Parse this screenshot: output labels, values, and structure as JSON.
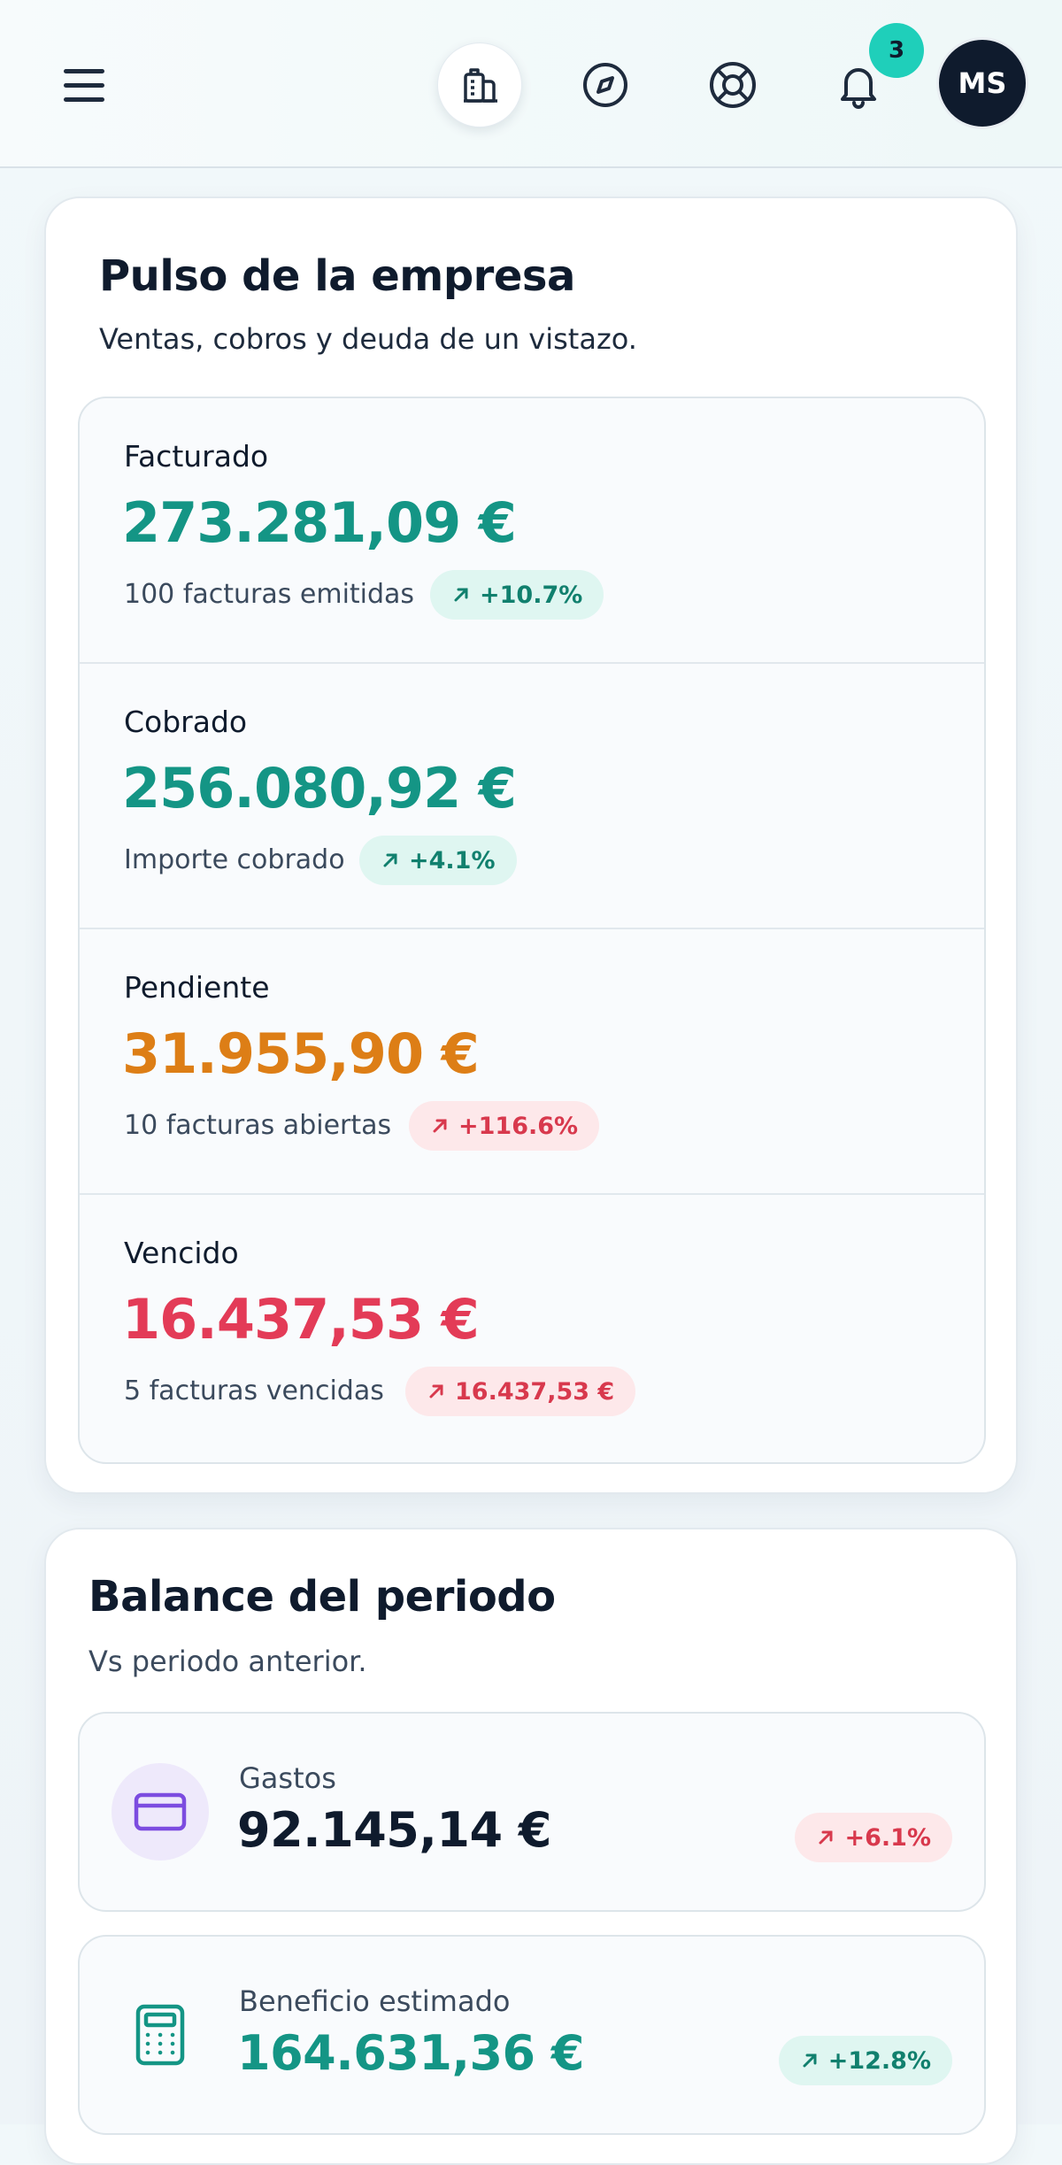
{
  "header": {
    "notifications_count": "3",
    "avatar_initials": "MS",
    "icons": [
      "menu-icon",
      "building-icon",
      "compass-icon",
      "lifebuoy-icon",
      "bell-icon"
    ]
  },
  "pulse": {
    "title": "Pulso de la empresa",
    "subtitle": "Ventas, cobros y deuda de un vistazo.",
    "metrics": [
      {
        "label": "Facturado",
        "value": "273.281,09 €",
        "note": "100 facturas emitidas",
        "change": "+10.7%",
        "tone": "green"
      },
      {
        "label": "Cobrado",
        "value": "256.080,92 €",
        "note": "Importe cobrado",
        "change": "+4.1%",
        "tone": "green"
      },
      {
        "label": "Pendiente",
        "value": "31.955,90 €",
        "note": "10 facturas abiertas",
        "change": "+116.6%",
        "tone": "red"
      },
      {
        "label": "Vencido",
        "value": "16.437,53 €",
        "note": "5 facturas vencidas",
        "change": "16.437,53 €",
        "tone": "red"
      }
    ]
  },
  "balance": {
    "title": "Balance del periodo",
    "subtitle": "Vs periodo anterior.",
    "items": [
      {
        "label": "Gastos",
        "value": "92.145,14 €",
        "change": "+6.1%",
        "icon": "credit-card-icon"
      },
      {
        "label": "Beneficio estimado",
        "value": "164.631,36 €",
        "change": "+12.8%",
        "icon": "calculator-icon"
      }
    ]
  },
  "colors": {
    "accent_green": "#149585",
    "pending_orange": "#dd7e16",
    "overdue_red": "#e33b57",
    "notification_badge": "#1fcfba",
    "expense_purple": "#7c4ce0"
  }
}
